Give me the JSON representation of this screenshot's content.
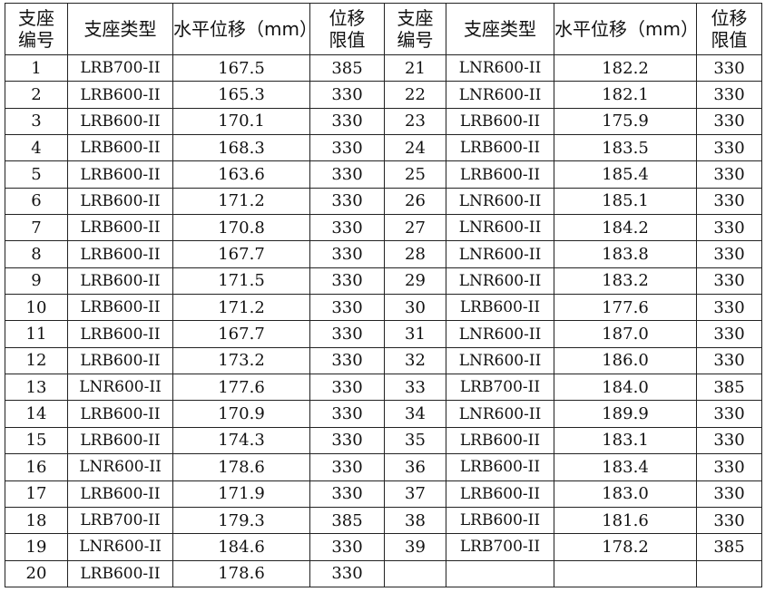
{
  "headers": {
    "no_line1": "支座",
    "no_line2": "编号",
    "type": "支座类型",
    "disp": "水平位移（mm）",
    "limit_line1": "位移",
    "limit_line2": "限值"
  },
  "left_rows": [
    {
      "no": "1",
      "type": "LRB700-II",
      "disp": "167.5",
      "limit": "385"
    },
    {
      "no": "2",
      "type": "LRB600-II",
      "disp": "165.3",
      "limit": "330"
    },
    {
      "no": "3",
      "type": "LRB600-II",
      "disp": "170.1",
      "limit": "330"
    },
    {
      "no": "4",
      "type": "LRB600-II",
      "disp": "168.3",
      "limit": "330"
    },
    {
      "no": "5",
      "type": "LRB600-II",
      "disp": "163.6",
      "limit": "330"
    },
    {
      "no": "6",
      "type": "LRB600-II",
      "disp": "171.2",
      "limit": "330"
    },
    {
      "no": "7",
      "type": "LRB600-II",
      "disp": "170.8",
      "limit": "330"
    },
    {
      "no": "8",
      "type": "LRB600-II",
      "disp": "167.7",
      "limit": "330"
    },
    {
      "no": "9",
      "type": "LRB600-II",
      "disp": "171.5",
      "limit": "330"
    },
    {
      "no": "10",
      "type": "LRB600-II",
      "disp": "171.2",
      "limit": "330"
    },
    {
      "no": "11",
      "type": "LRB600-II",
      "disp": "167.7",
      "limit": "330"
    },
    {
      "no": "12",
      "type": "LRB600-II",
      "disp": "173.2",
      "limit": "330"
    },
    {
      "no": "13",
      "type": "LNR600-II",
      "disp": "177.6",
      "limit": "330"
    },
    {
      "no": "14",
      "type": "LRB600-II",
      "disp": "170.9",
      "limit": "330"
    },
    {
      "no": "15",
      "type": "LRB600-II",
      "disp": "174.3",
      "limit": "330"
    },
    {
      "no": "16",
      "type": "LNR600-II",
      "disp": "178.6",
      "limit": "330"
    },
    {
      "no": "17",
      "type": "LRB600-II",
      "disp": "171.9",
      "limit": "330"
    },
    {
      "no": "18",
      "type": "LRB700-II",
      "disp": "179.3",
      "limit": "385"
    },
    {
      "no": "19",
      "type": "LNR600-II",
      "disp": "184.6",
      "limit": "330"
    },
    {
      "no": "20",
      "type": "LRB600-II",
      "disp": "178.6",
      "limit": "330"
    }
  ],
  "right_rows": [
    {
      "no": "21",
      "type": "LNR600-II",
      "disp": "182.2",
      "limit": "330"
    },
    {
      "no": "22",
      "type": "LNR600-II",
      "disp": "182.1",
      "limit": "330"
    },
    {
      "no": "23",
      "type": "LRB600-II",
      "disp": "175.9",
      "limit": "330"
    },
    {
      "no": "24",
      "type": "LRB600-II",
      "disp": "183.5",
      "limit": "330"
    },
    {
      "no": "25",
      "type": "LRB600-II",
      "disp": "185.4",
      "limit": "330"
    },
    {
      "no": "26",
      "type": "LNR600-II",
      "disp": "185.1",
      "limit": "330"
    },
    {
      "no": "27",
      "type": "LNR600-II",
      "disp": "184.2",
      "limit": "330"
    },
    {
      "no": "28",
      "type": "LNR600-II",
      "disp": "183.8",
      "limit": "330"
    },
    {
      "no": "29",
      "type": "LNR600-II",
      "disp": "183.2",
      "limit": "330"
    },
    {
      "no": "30",
      "type": "LRB600-II",
      "disp": "177.6",
      "limit": "330"
    },
    {
      "no": "31",
      "type": "LNR600-II",
      "disp": "187.0",
      "limit": "330"
    },
    {
      "no": "32",
      "type": "LNR600-II",
      "disp": "186.0",
      "limit": "330"
    },
    {
      "no": "33",
      "type": "LRB700-II",
      "disp": "184.0",
      "limit": "385"
    },
    {
      "no": "34",
      "type": "LNR600-II",
      "disp": "189.9",
      "limit": "330"
    },
    {
      "no": "35",
      "type": "LRB600-II",
      "disp": "183.1",
      "limit": "330"
    },
    {
      "no": "36",
      "type": "LRB600-II",
      "disp": "183.4",
      "limit": "330"
    },
    {
      "no": "37",
      "type": "LRB600-II",
      "disp": "183.0",
      "limit": "330"
    },
    {
      "no": "38",
      "type": "LRB600-II",
      "disp": "181.6",
      "limit": "330"
    },
    {
      "no": "39",
      "type": "LRB700-II",
      "disp": "178.2",
      "limit": "385"
    },
    {
      "no": "",
      "type": "",
      "disp": "",
      "limit": ""
    }
  ]
}
